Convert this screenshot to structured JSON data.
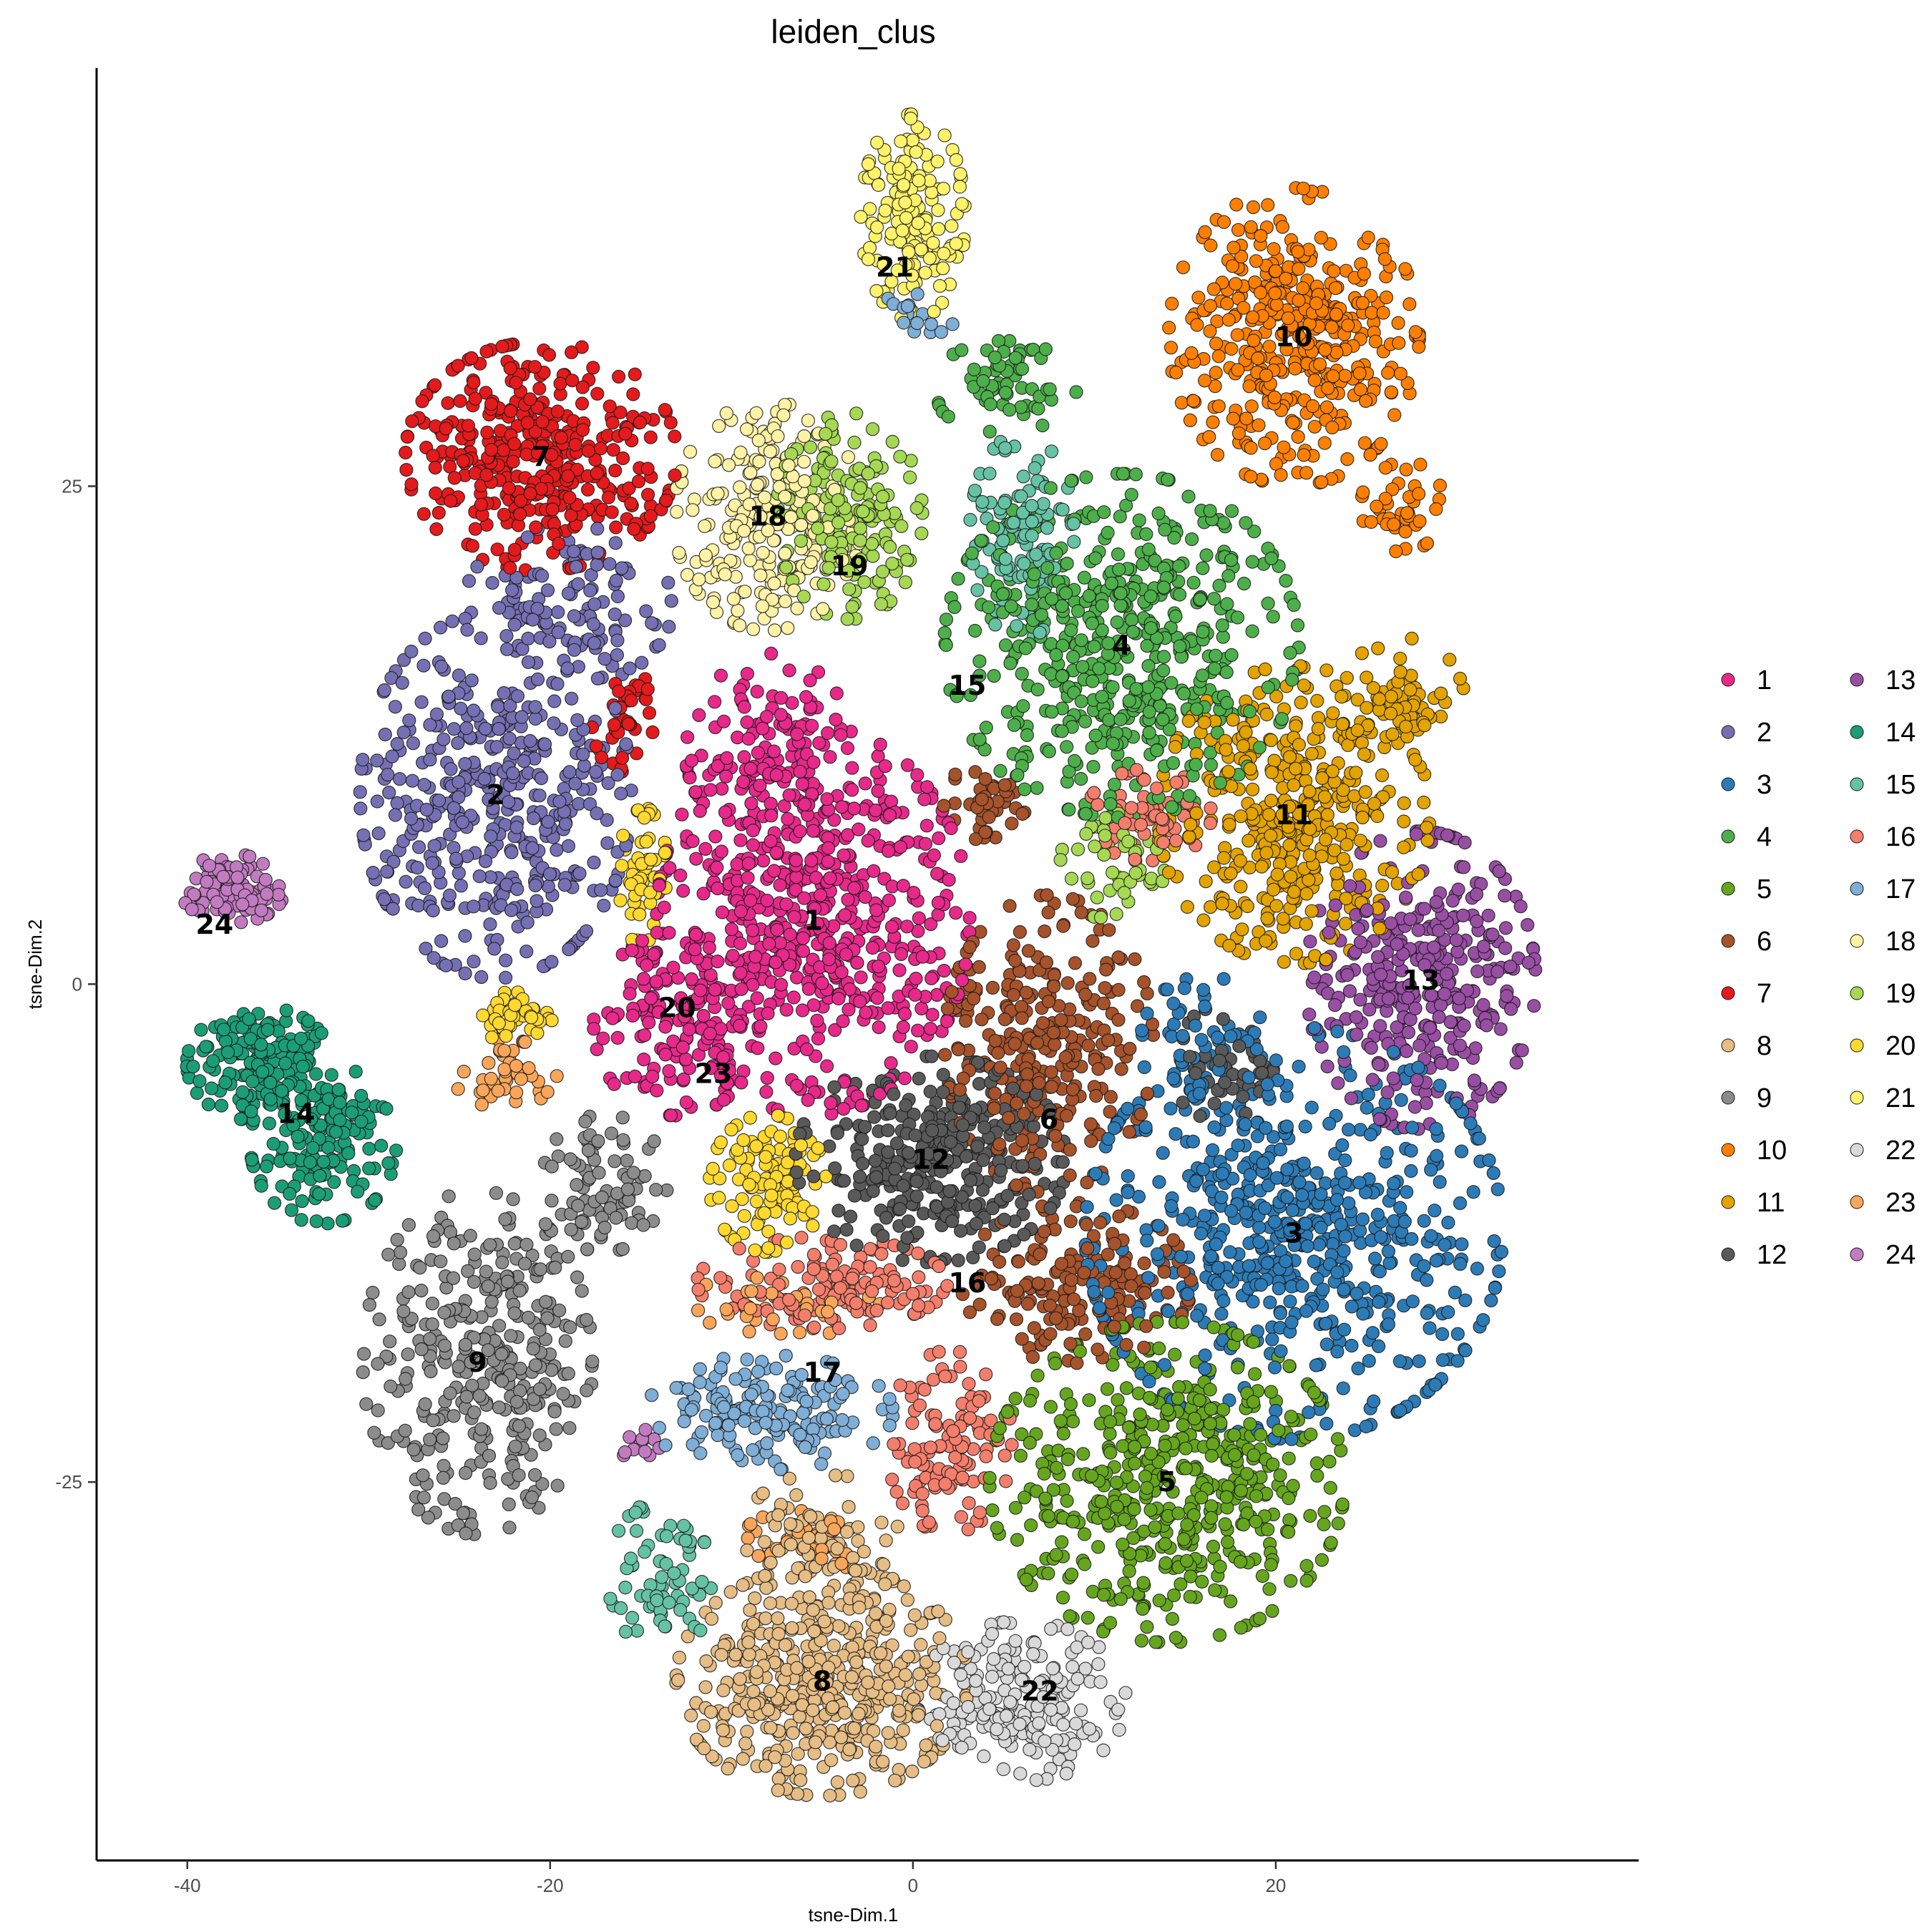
{
  "chart_data": {
    "type": "scatter",
    "title": "leiden_clus",
    "xlabel": "tsne-Dim.1",
    "ylabel": "tsne-Dim.2",
    "xlim": [
      -45,
      40
    ],
    "ylim": [
      -44,
      46
    ],
    "x_ticks": [
      -40,
      -20,
      0,
      20
    ],
    "y_ticks": [
      -25,
      0,
      25
    ],
    "grid": false,
    "legend_position": "right",
    "legend_columns": 2,
    "series": [
      {
        "name": "1",
        "color": "#E7298A",
        "label_pos": [
          -5.5,
          3.2
        ],
        "clumps": [
          [
            -5.5,
            3.2,
            7.5,
            8.5,
            600
          ],
          [
            -13,
            -2,
            4,
            4,
            150
          ],
          [
            -8,
            12,
            4,
            4,
            100
          ]
        ]
      },
      {
        "name": "2",
        "color": "#7570B3",
        "label_pos": [
          -23,
          9.5
        ],
        "clumps": [
          [
            -23,
            9.5,
            6.5,
            8.0,
            420
          ],
          [
            -19,
            19,
            5,
            3.5,
            120
          ]
        ]
      },
      {
        "name": "3",
        "color": "#2C7BB6",
        "label_pos": [
          21,
          -12.5
        ],
        "clumps": [
          [
            21,
            -12.5,
            10.0,
            9.0,
            620
          ],
          [
            16,
            -3,
            3,
            3,
            50
          ]
        ]
      },
      {
        "name": "4",
        "color": "#4DAF4A",
        "label_pos": [
          11.5,
          17
        ],
        "clumps": [
          [
            11.5,
            17,
            8.5,
            7.5,
            520
          ],
          [
            5,
            30,
            3.5,
            2.0,
            60
          ]
        ]
      },
      {
        "name": "5",
        "color": "#66A61E",
        "label_pos": [
          14,
          -25
        ],
        "clumps": [
          [
            14,
            -25,
            8.5,
            7.0,
            520
          ]
        ]
      },
      {
        "name": "6",
        "color": "#A6522B",
        "label_pos": [
          7.5,
          -6.8
        ],
        "clumps": [
          [
            7.5,
            -3,
            5.0,
            6.5,
            280
          ],
          [
            9,
            -15,
            5.5,
            3.5,
            170
          ],
          [
            4,
            9,
            2,
            2,
            40
          ]
        ]
      },
      {
        "name": "7",
        "color": "#E41A1C",
        "label_pos": [
          -20.5,
          26.5
        ],
        "clumps": [
          [
            -20.5,
            26.5,
            6.5,
            5.0,
            380
          ],
          [
            -16,
            13.5,
            1.5,
            2.5,
            40
          ]
        ]
      },
      {
        "name": "8",
        "color": "#E6BD85",
        "label_pos": [
          -5,
          -35
        ],
        "clumps": [
          [
            -5,
            -35,
            7.0,
            5.0,
            460
          ],
          [
            -5,
            -28,
            4,
            3,
            80
          ]
        ]
      },
      {
        "name": "9",
        "color": "#8C8C8C",
        "label_pos": [
          -24,
          -19
        ],
        "clumps": [
          [
            -24,
            -19,
            5.5,
            7.5,
            330
          ],
          [
            -17,
            -10,
            3,
            3,
            80
          ]
        ]
      },
      {
        "name": "10",
        "color": "#FF7F00",
        "label_pos": [
          21,
          32.5
        ],
        "clumps": [
          [
            21,
            32.5,
            6.0,
            6.5,
            400
          ],
          [
            27,
            24,
            2,
            2,
            40
          ]
        ]
      },
      {
        "name": "11",
        "color": "#E3A300",
        "label_pos": [
          21,
          8.5
        ],
        "clumps": [
          [
            21,
            8.5,
            6.5,
            6.5,
            400
          ],
          [
            27,
            14,
            3,
            3,
            60
          ]
        ]
      },
      {
        "name": "12",
        "color": "#595959",
        "label_pos": [
          1,
          -8.8
        ],
        "clumps": [
          [
            1,
            -8.8,
            6.5,
            4.5,
            330
          ],
          [
            17,
            -4,
            2.5,
            2.5,
            50
          ]
        ]
      },
      {
        "name": "13",
        "color": "#984EA3",
        "label_pos": [
          28,
          0.2
        ],
        "clumps": [
          [
            28,
            0.2,
            5.5,
            6.5,
            330
          ]
        ]
      },
      {
        "name": "14",
        "color": "#1B9E77",
        "label_pos": [
          -34,
          -6.5
        ],
        "clumps": [
          [
            -36,
            -4,
            3.5,
            2.5,
            150
          ],
          [
            -32.5,
            -8,
            3.5,
            3.5,
            150
          ]
        ]
      },
      {
        "name": "15",
        "color": "#66C2A5",
        "label_pos": [
          3,
          15
        ],
        "clumps": [
          [
            6,
            22.5,
            2.5,
            4.5,
            110
          ],
          [
            -14,
            -30,
            2.5,
            3.5,
            70
          ]
        ]
      },
      {
        "name": "16",
        "color": "#F47E6C",
        "label_pos": [
          3,
          -15
        ],
        "clumps": [
          [
            -5,
            -15,
            6,
            2,
            130
          ],
          [
            2,
            -23,
            3,
            4,
            110
          ],
          [
            13,
            8.5,
            3,
            2,
            60
          ]
        ]
      },
      {
        "name": "17",
        "color": "#7FAED6",
        "label_pos": [
          -5,
          -19.5
        ],
        "clumps": [
          [
            -8,
            -21.5,
            6.0,
            2.5,
            160
          ],
          [
            0,
            33.5,
            2,
            1,
            15
          ]
        ]
      },
      {
        "name": "18",
        "color": "#FFF2A6",
        "label_pos": [
          -8,
          23.5
        ],
        "clumps": [
          [
            -8,
            23.5,
            4.5,
            5.0,
            230
          ]
        ]
      },
      {
        "name": "19",
        "color": "#A6D854",
        "label_pos": [
          -3.5,
          21
        ],
        "clumps": [
          [
            -3.5,
            23.5,
            3.5,
            4.5,
            170
          ],
          [
            11,
            6,
            2.5,
            2.5,
            50
          ]
        ]
      },
      {
        "name": "20",
        "color": "#FFD92F",
        "label_pos": [
          -13,
          -1.2
        ],
        "clumps": [
          [
            -8,
            -10,
            2.8,
            3.0,
            110
          ],
          [
            -15,
            5.5,
            1.3,
            3.0,
            50
          ],
          [
            -22,
            -1.5,
            2.0,
            1.2,
            40
          ]
        ]
      },
      {
        "name": "21",
        "color": "#FFF36C",
        "label_pos": [
          -1,
          36
        ],
        "clumps": [
          [
            0,
            38.5,
            2.5,
            4.5,
            150
          ]
        ]
      },
      {
        "name": "22",
        "color": "#D9D9D9",
        "label_pos": [
          7,
          -35.5
        ],
        "clumps": [
          [
            6,
            -36,
            5.0,
            3.5,
            200
          ]
        ]
      },
      {
        "name": "23",
        "color": "#F9A65A",
        "label_pos": [
          -11,
          -4.5
        ],
        "clumps": [
          [
            -22.5,
            -4.5,
            2.5,
            1.5,
            45
          ],
          [
            -7,
            -16,
            4.5,
            1.5,
            45
          ],
          [
            -6,
            -28,
            3,
            1.5,
            30
          ]
        ]
      },
      {
        "name": "24",
        "color": "#C27BC0",
        "label_pos": [
          -38.5,
          3
        ],
        "clumps": [
          [
            -37.5,
            4.8,
            2.5,
            1.5,
            90
          ],
          [
            -15,
            -23,
            1,
            1,
            12
          ]
        ]
      }
    ]
  }
}
